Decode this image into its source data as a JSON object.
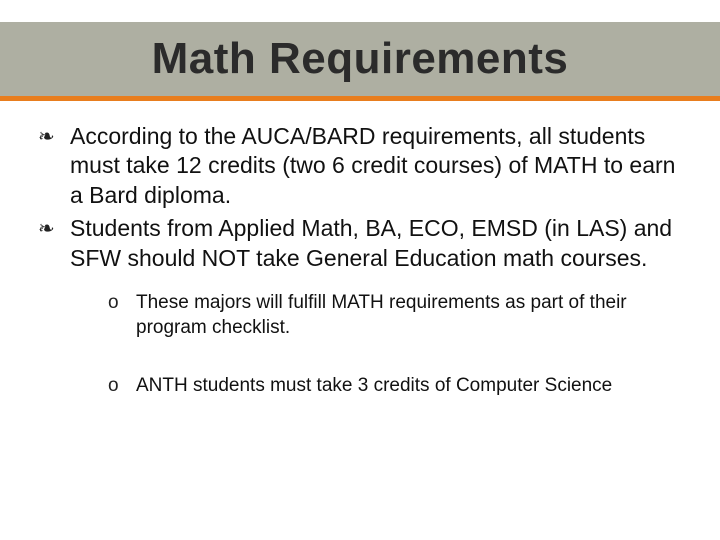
{
  "slide": {
    "title": "Math Requirements",
    "bullets": [
      "According to the AUCA/BARD requirements, all students must take 12 credits (two 6 credit courses) of MATH to earn a Bard diploma.",
      "Students from Applied Math, BA, ECO, EMSD (in LAS) and SFW should NOT take General Education math courses."
    ],
    "sub_bullets": [
      "These majors will fulfill MATH requirements as part of their program checklist.",
      "ANTH students must take 3 credits of Computer Science"
    ],
    "main_marker": "❧",
    "sub_marker": "o",
    "colors": {
      "band_bg": "#aeafa2",
      "accent": "#e87d1e",
      "title_text": "#2b2b2b",
      "body_text": "#111111",
      "background": "#ffffff"
    },
    "typography": {
      "title_fontsize": 44,
      "title_weight": 700,
      "bullet_fontsize": 23,
      "sub_fontsize": 19
    }
  }
}
